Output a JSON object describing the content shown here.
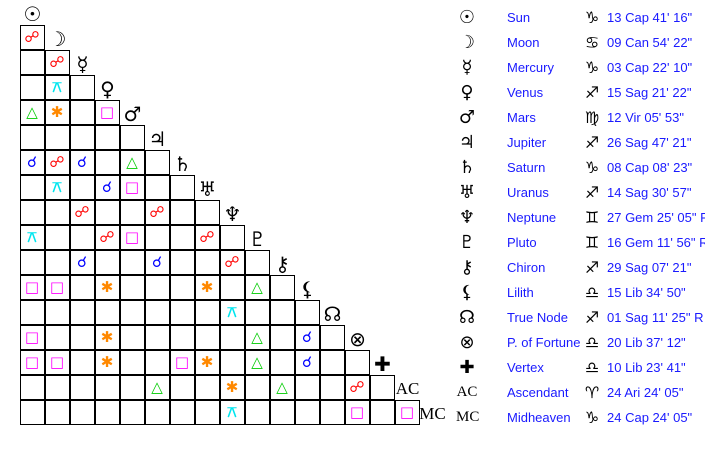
{
  "bodies": [
    {
      "name": "Sun",
      "glyph": "☉",
      "icon": "sun-icon",
      "sign_glyph": "♑",
      "sign_icon": "capricorn-icon",
      "position": "13 Cap 41' 16\""
    },
    {
      "name": "Moon",
      "glyph": "☽",
      "icon": "moon-icon",
      "sign_glyph": "♋",
      "sign_icon": "cancer-icon",
      "position": "09 Can 54' 22\""
    },
    {
      "name": "Mercury",
      "glyph": "☿",
      "icon": "mercury-icon",
      "sign_glyph": "♑",
      "sign_icon": "capricorn-icon",
      "position": "03 Cap 22' 10\""
    },
    {
      "name": "Venus",
      "glyph": "♀",
      "icon": "venus-icon",
      "sign_glyph": "♐",
      "sign_icon": "sagittarius-icon",
      "position": "15 Sag 21' 22\""
    },
    {
      "name": "Mars",
      "glyph": "♂",
      "icon": "mars-icon",
      "sign_glyph": "♍",
      "sign_icon": "virgo-icon",
      "position": "12 Vir 05' 53\""
    },
    {
      "name": "Jupiter",
      "glyph": "♃",
      "icon": "jupiter-icon",
      "sign_glyph": "♐",
      "sign_icon": "sagittarius-icon",
      "position": "26 Sag 47' 21\""
    },
    {
      "name": "Saturn",
      "glyph": "♄",
      "icon": "saturn-icon",
      "sign_glyph": "♑",
      "sign_icon": "capricorn-icon",
      "position": "08 Cap 08' 23\""
    },
    {
      "name": "Uranus",
      "glyph": "♅",
      "icon": "uranus-icon",
      "sign_glyph": "♐",
      "sign_icon": "sagittarius-icon",
      "position": "14 Sag 30' 57\""
    },
    {
      "name": "Neptune",
      "glyph": "♆",
      "icon": "neptune-icon",
      "sign_glyph": "♊",
      "sign_icon": "gemini-icon",
      "position": "27 Gem 25' 05\" R"
    },
    {
      "name": "Pluto",
      "glyph": "♇",
      "icon": "pluto-icon",
      "sign_glyph": "♊",
      "sign_icon": "gemini-icon",
      "position": "16 Gem 11' 56\" R"
    },
    {
      "name": "Chiron",
      "glyph": "⚷",
      "icon": "chiron-icon",
      "sign_glyph": "♐",
      "sign_icon": "sagittarius-icon",
      "position": "29 Sag 07' 21\""
    },
    {
      "name": "Lilith",
      "glyph": "⚸",
      "icon": "lilith-icon",
      "sign_glyph": "♎",
      "sign_icon": "libra-icon",
      "position": "15 Lib 34' 50\""
    },
    {
      "name": "True Node",
      "glyph": "☊",
      "icon": "true-node-icon",
      "sign_glyph": "♐",
      "sign_icon": "sagittarius-icon",
      "position": "01 Sag 11' 25\" R"
    },
    {
      "name": "P. of Fortune",
      "glyph": "⊗",
      "icon": "part-of-fortune-icon",
      "sign_glyph": "♎",
      "sign_icon": "libra-icon",
      "position": "20 Lib 37' 12\""
    },
    {
      "name": "Vertex",
      "glyph": "✚",
      "icon": "vertex-icon",
      "sign_glyph": "♎",
      "sign_icon": "libra-icon",
      "position": "10 Lib 23' 41\""
    },
    {
      "name": "Ascendant",
      "glyph": "AC",
      "icon": "ascendant-icon",
      "sign_glyph": "♈",
      "sign_icon": "aries-icon",
      "position": "24 Ari 24' 05\""
    },
    {
      "name": "Midheaven",
      "glyph": "MC",
      "icon": "midheaven-icon",
      "sign_glyph": "♑",
      "sign_icon": "capricorn-icon",
      "position": "24 Cap 24' 05\""
    }
  ],
  "aspect_types": {
    "conjunction": {
      "glyph": "☌",
      "color": "#0000ff"
    },
    "opposition": {
      "glyph": "☍",
      "color": "#ff0000"
    },
    "trine": {
      "glyph": "△",
      "color": "#00cc00"
    },
    "square": {
      "glyph": "□",
      "color": "#ff00ff"
    },
    "sextile": {
      "glyph": "✱",
      "color": "#ff8800"
    },
    "quincunx": {
      "glyph": "⚻",
      "color": "#00e5ee"
    }
  },
  "aspects": [
    [
      "Moon",
      "Sun",
      "opposition"
    ],
    [
      "Mercury",
      "Moon",
      "opposition"
    ],
    [
      "Venus",
      "Moon",
      "quincunx"
    ],
    [
      "Mars",
      "Sun",
      "trine"
    ],
    [
      "Mars",
      "Moon",
      "sextile"
    ],
    [
      "Mars",
      "Venus",
      "square"
    ],
    [
      "Saturn",
      "Sun",
      "conjunction"
    ],
    [
      "Saturn",
      "Moon",
      "opposition"
    ],
    [
      "Saturn",
      "Mercury",
      "conjunction"
    ],
    [
      "Saturn",
      "Mars",
      "trine"
    ],
    [
      "Uranus",
      "Moon",
      "quincunx"
    ],
    [
      "Uranus",
      "Venus",
      "conjunction"
    ],
    [
      "Uranus",
      "Mars",
      "square"
    ],
    [
      "Neptune",
      "Mercury",
      "opposition"
    ],
    [
      "Neptune",
      "Jupiter",
      "opposition"
    ],
    [
      "Pluto",
      "Sun",
      "quincunx"
    ],
    [
      "Pluto",
      "Venus",
      "opposition"
    ],
    [
      "Pluto",
      "Mars",
      "square"
    ],
    [
      "Pluto",
      "Uranus",
      "opposition"
    ],
    [
      "Chiron",
      "Mercury",
      "conjunction"
    ],
    [
      "Chiron",
      "Jupiter",
      "conjunction"
    ],
    [
      "Chiron",
      "Neptune",
      "opposition"
    ],
    [
      "Lilith",
      "Sun",
      "square"
    ],
    [
      "Lilith",
      "Moon",
      "square"
    ],
    [
      "Lilith",
      "Venus",
      "sextile"
    ],
    [
      "Lilith",
      "Uranus",
      "sextile"
    ],
    [
      "Lilith",
      "Pluto",
      "trine"
    ],
    [
      "True Node",
      "Neptune",
      "quincunx"
    ],
    [
      "P. of Fortune",
      "Sun",
      "square"
    ],
    [
      "P. of Fortune",
      "Venus",
      "sextile"
    ],
    [
      "P. of Fortune",
      "Pluto",
      "trine"
    ],
    [
      "P. of Fortune",
      "Lilith",
      "conjunction"
    ],
    [
      "Vertex",
      "Sun",
      "square"
    ],
    [
      "Vertex",
      "Moon",
      "square"
    ],
    [
      "Vertex",
      "Venus",
      "sextile"
    ],
    [
      "Vertex",
      "Saturn",
      "square"
    ],
    [
      "Vertex",
      "Uranus",
      "sextile"
    ],
    [
      "Vertex",
      "Pluto",
      "trine"
    ],
    [
      "Vertex",
      "Lilith",
      "conjunction"
    ],
    [
      "Ascendant",
      "Jupiter",
      "trine"
    ],
    [
      "Ascendant",
      "Neptune",
      "sextile"
    ],
    [
      "Ascendant",
      "Chiron",
      "trine"
    ],
    [
      "Ascendant",
      "P. of Fortune",
      "opposition"
    ],
    [
      "Midheaven",
      "Neptune",
      "quincunx"
    ],
    [
      "Midheaven",
      "P. of Fortune",
      "square"
    ],
    [
      "Midheaven",
      "Ascendant",
      "square"
    ]
  ]
}
